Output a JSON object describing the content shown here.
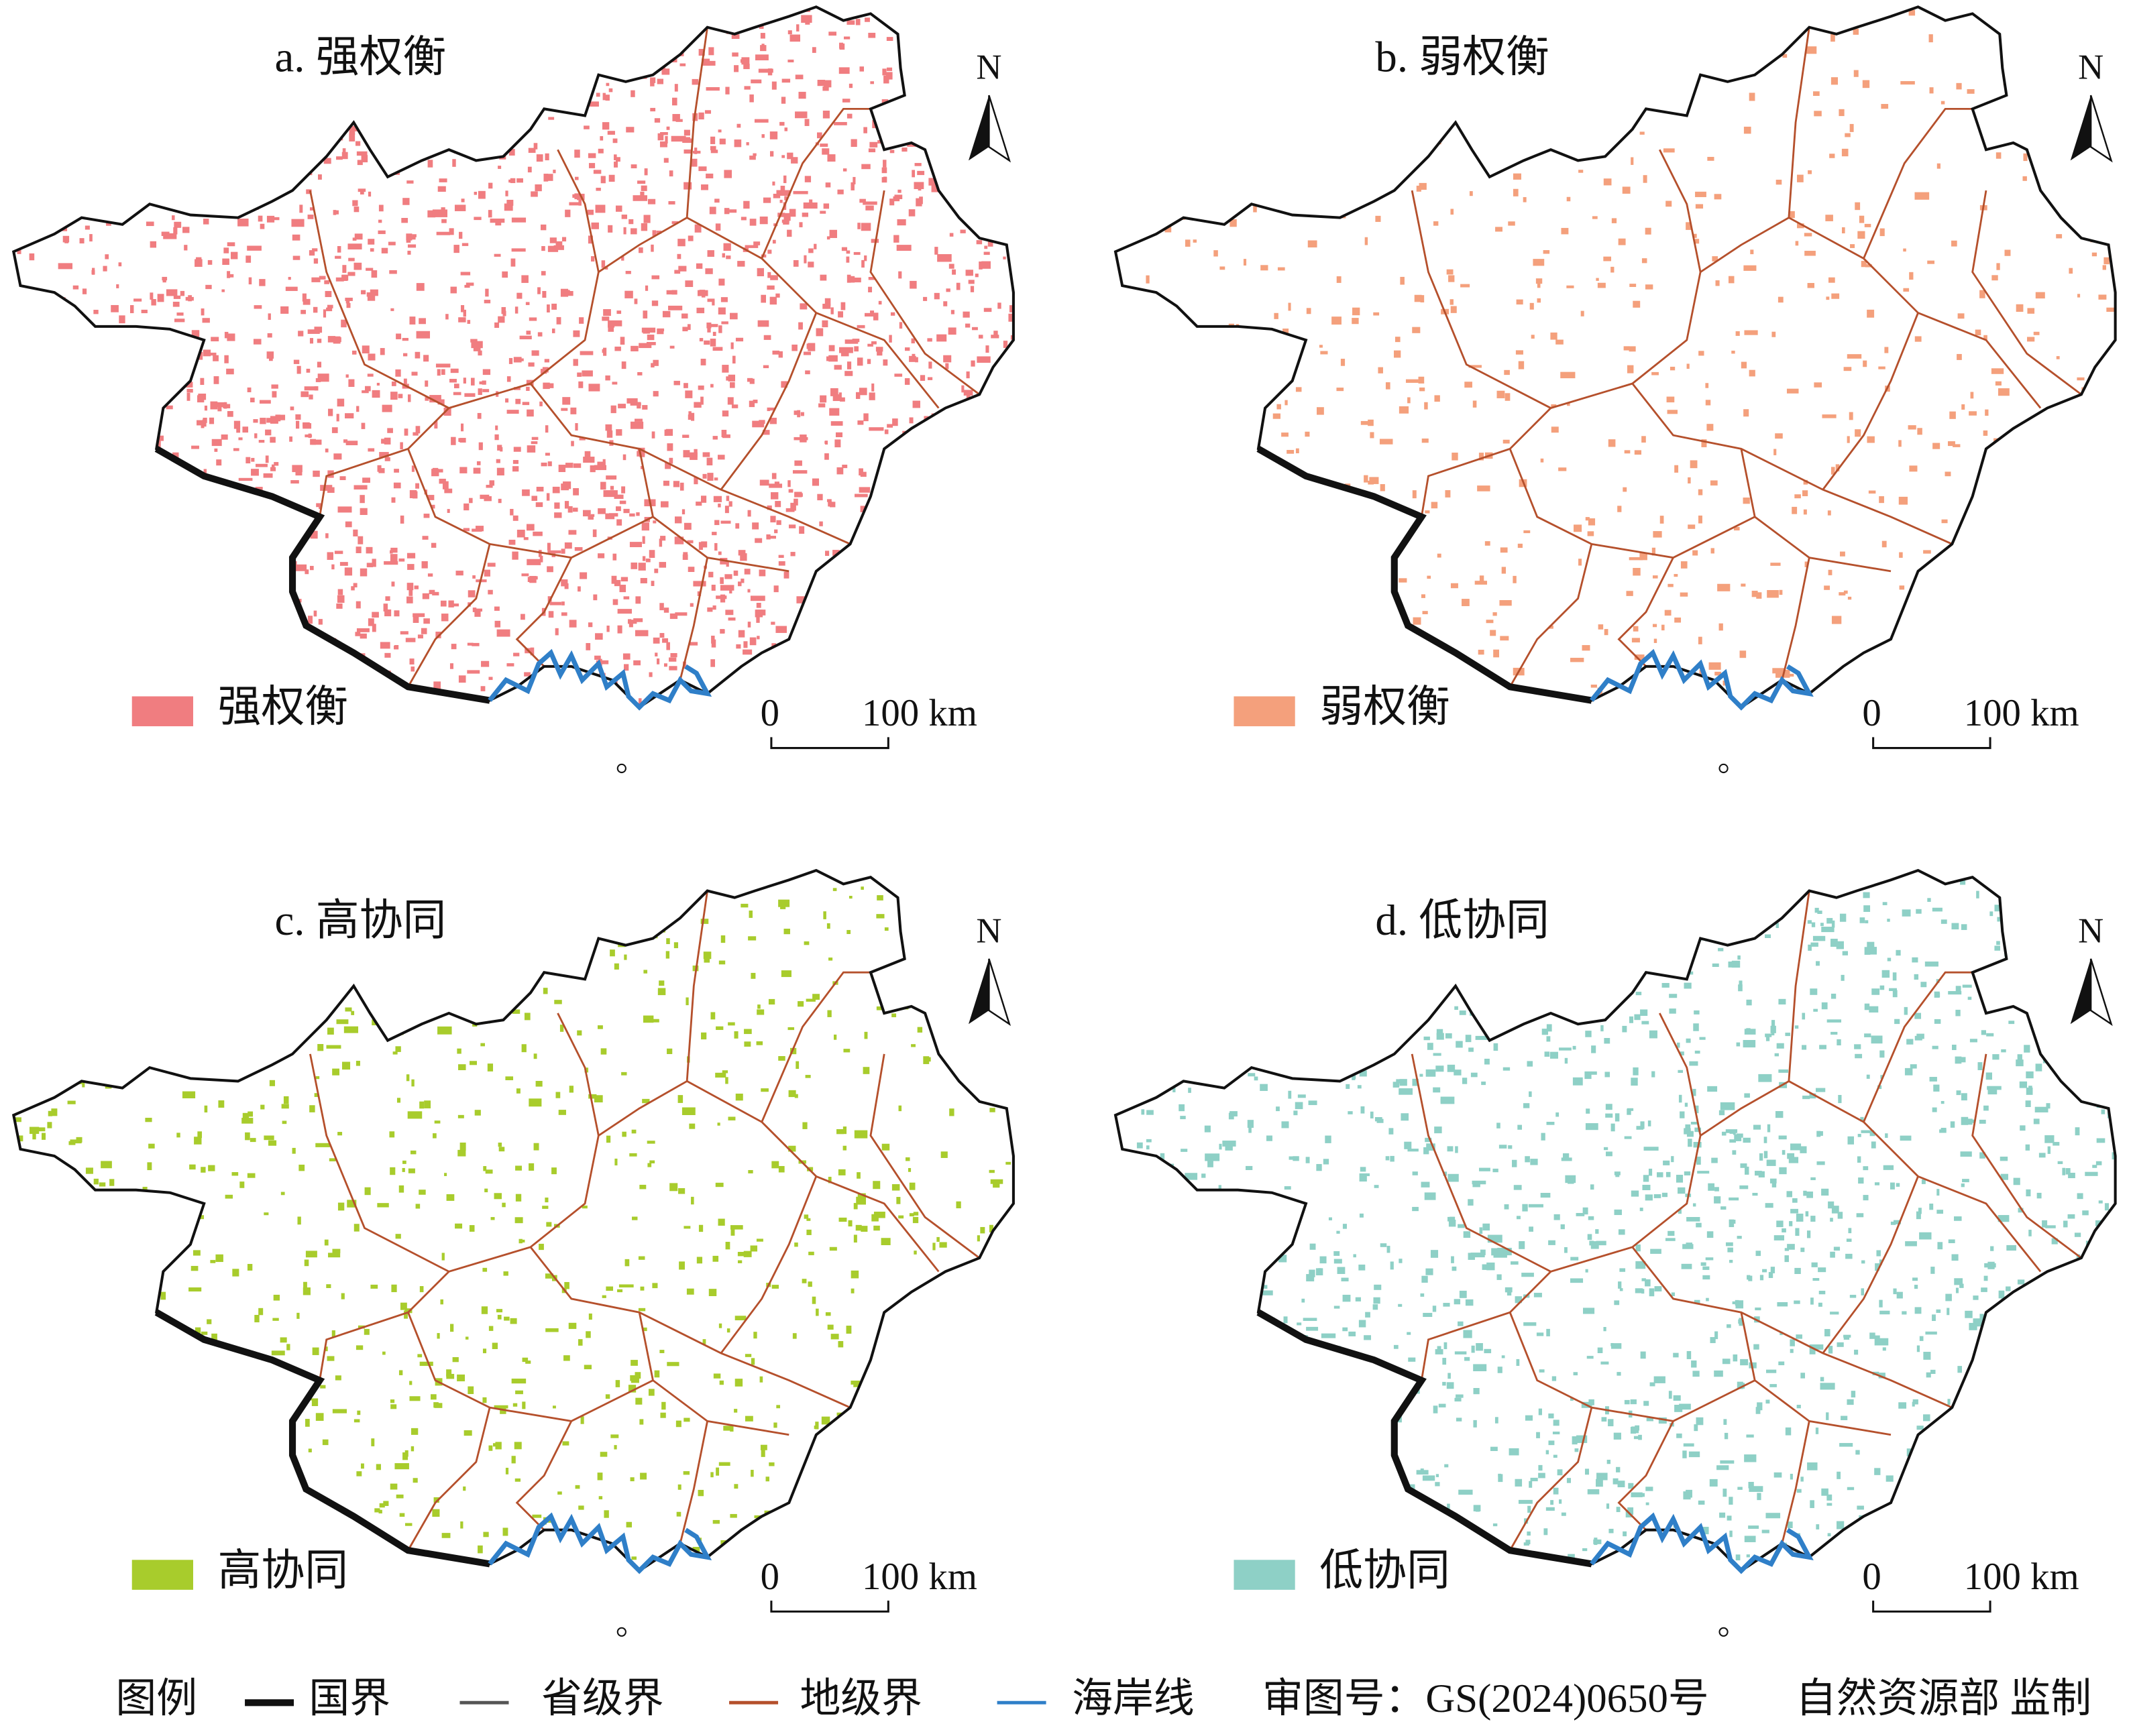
{
  "panels": [
    {
      "title": "a. 强权衡",
      "legend_label": "强权衡",
      "color": "#f07d80",
      "scale_start": "0",
      "scale_end": "100 km",
      "north": "N"
    },
    {
      "title": "b. 弱权衡",
      "legend_label": "弱权衡",
      "color": "#f4a07c",
      "scale_start": "0",
      "scale_end": "100 km",
      "north": "N"
    },
    {
      "title": "c. 高协同",
      "legend_label": "高协同",
      "color": "#a8cc2c",
      "scale_start": "0",
      "scale_end": "100 km",
      "north": "N"
    },
    {
      "title": "d. 低协同",
      "legend_label": "低协同",
      "color": "#8ed0c6",
      "scale_start": "0",
      "scale_end": "100 km",
      "north": "N"
    }
  ],
  "legend": {
    "title": "图例",
    "items": [
      {
        "label": "国界",
        "color": "#111111"
      },
      {
        "label": "省级界",
        "color": "#555555"
      },
      {
        "label": "地级界",
        "color": "#b5502c"
      },
      {
        "label": "海岸线",
        "color": "#2f7fc8"
      }
    ]
  },
  "approval": "审图号：GS(2024)0650号",
  "producer": "自然资源部 监制"
}
